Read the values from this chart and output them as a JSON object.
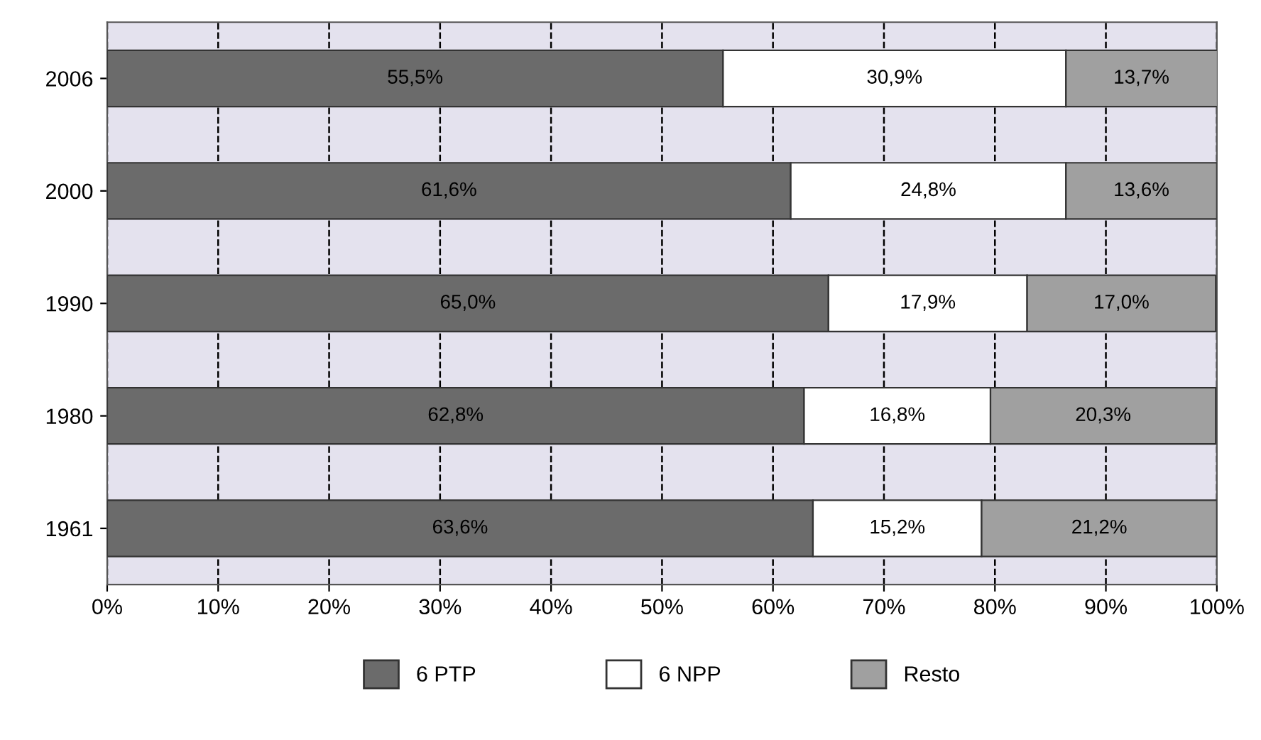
{
  "chart_data": {
    "type": "bar",
    "orientation": "horizontal",
    "stacked": true,
    "categories": [
      "2006",
      "2000",
      "1990",
      "1980",
      "1961"
    ],
    "series": [
      {
        "name": "6 PTP",
        "color": "#6b6b6b",
        "values": [
          55.5,
          61.6,
          65.0,
          62.8,
          63.6
        ],
        "value_labels": [
          "55,5%",
          "61,6%",
          "65,0%",
          "62,8%",
          "63,6%"
        ]
      },
      {
        "name": "6 NPP",
        "color": "#ffffff",
        "values": [
          30.9,
          24.8,
          17.9,
          16.8,
          15.2
        ],
        "value_labels": [
          "30,9%",
          "24,8%",
          "17,9%",
          "16,8%",
          "15,2%"
        ]
      },
      {
        "name": "Resto",
        "color": "#a0a0a0",
        "values": [
          13.7,
          13.6,
          17.0,
          20.3,
          21.2
        ],
        "value_labels": [
          "13,7%",
          "13,6%",
          "17,0%",
          "20,3%",
          "21,2%"
        ]
      }
    ],
    "xlim": [
      0,
      100
    ],
    "xticks": [
      {
        "value": 0,
        "label": "0%"
      },
      {
        "value": 10,
        "label": "10%"
      },
      {
        "value": 20,
        "label": "20%"
      },
      {
        "value": 30,
        "label": "30%"
      },
      {
        "value": 40,
        "label": "40%"
      },
      {
        "value": 50,
        "label": "50%"
      },
      {
        "value": 60,
        "label": "60%"
      },
      {
        "value": 70,
        "label": "70%"
      },
      {
        "value": 80,
        "label": "80%"
      },
      {
        "value": 90,
        "label": "90%"
      },
      {
        "value": 100,
        "label": "100%"
      }
    ],
    "grid": "x",
    "legend": "bottom",
    "line_style": "dashed"
  }
}
